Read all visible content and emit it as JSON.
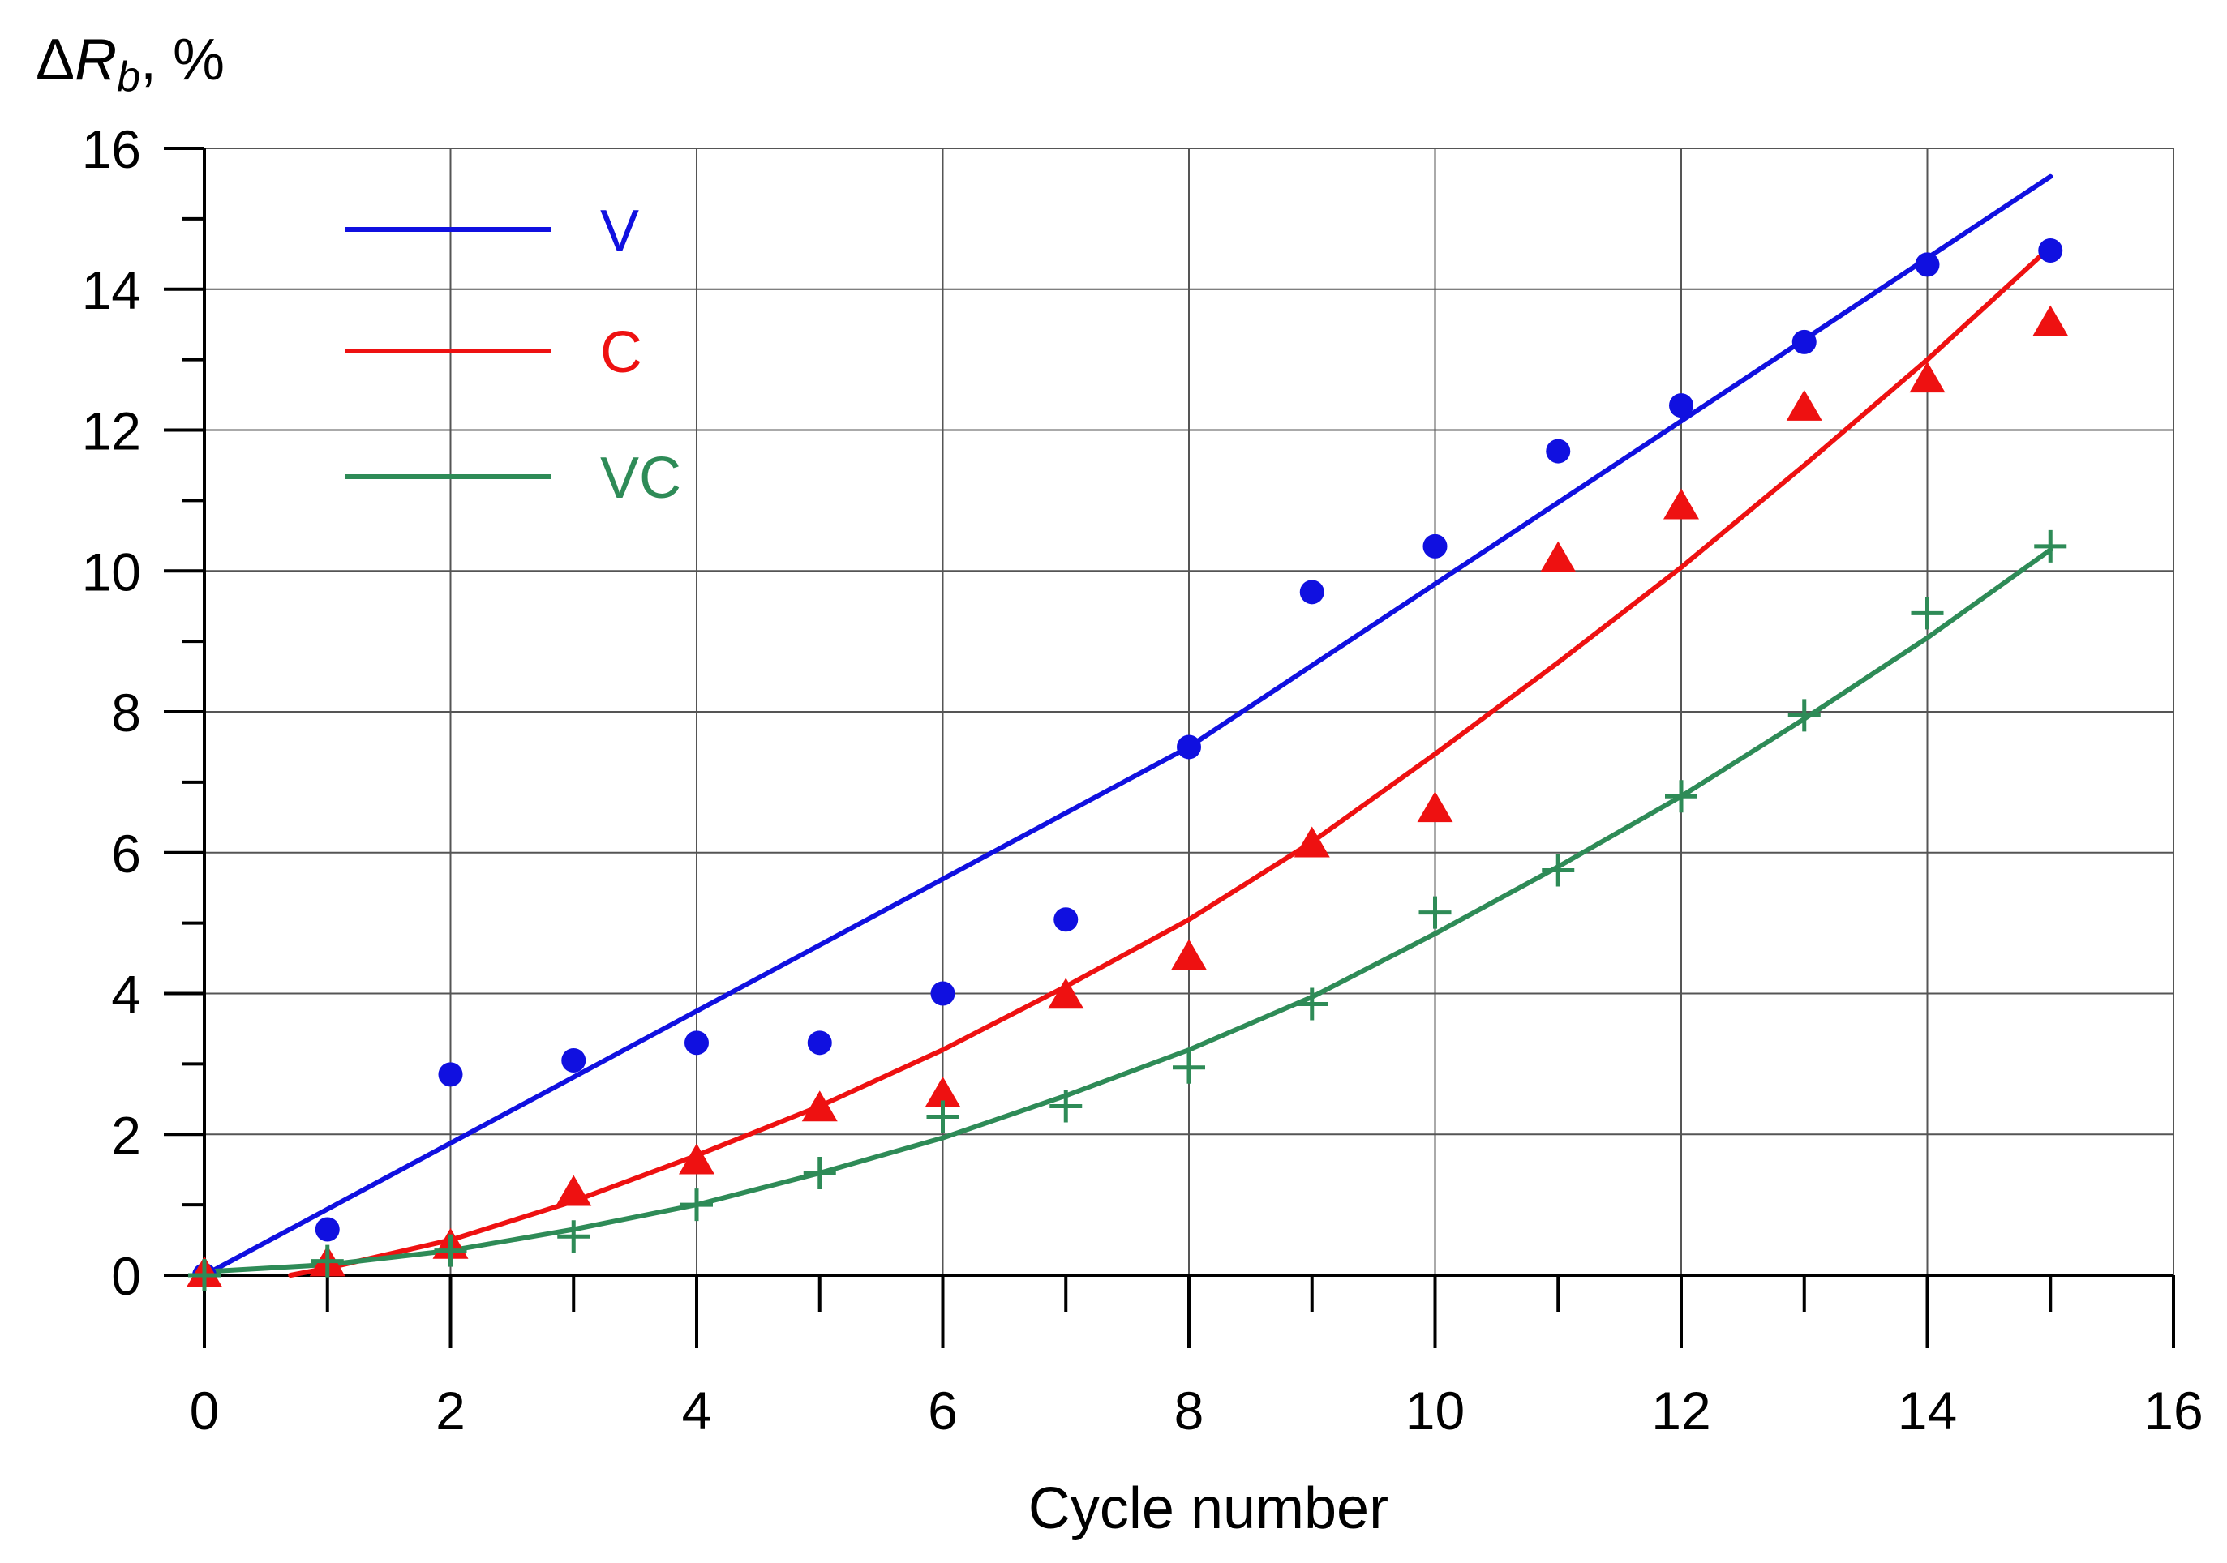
{
  "chart_data": {
    "type": "line",
    "title": "",
    "ylabel": "ΔRb, %",
    "ylabel_parts": {
      "delta": "Δ",
      "symbol": "R",
      "subscript": "b",
      "unit": ", %"
    },
    "xlabel": "Cycle number",
    "xlim": [
      0,
      16
    ],
    "ylim": [
      0,
      16
    ],
    "x_ticks": [
      0,
      2,
      4,
      6,
      8,
      10,
      12,
      14,
      16
    ],
    "y_ticks": [
      0,
      2,
      4,
      6,
      8,
      10,
      12,
      14,
      16
    ],
    "grid": true,
    "legend_position": "top-left",
    "series": [
      {
        "name": "V",
        "color": "#1010e0",
        "marker": "circle",
        "points_x": [
          0,
          1,
          2,
          3,
          4,
          5,
          6,
          7,
          8,
          9,
          10,
          11,
          12,
          13,
          14,
          15
        ],
        "points_y": [
          0,
          0.65,
          2.85,
          3.05,
          3.3,
          3.3,
          4.0,
          5.05,
          7.5,
          9.7,
          10.35,
          11.7,
          12.35,
          13.25,
          14.35,
          14.55
        ],
        "fit_x": [
          0,
          8,
          15
        ],
        "fit_y": [
          0,
          7.5,
          15.6
        ]
      },
      {
        "name": "C",
        "color": "#ee1111",
        "marker": "triangle",
        "points_x": [
          0,
          1,
          2,
          3,
          4,
          5,
          6,
          7,
          8,
          9,
          10,
          11,
          12,
          13,
          14,
          15
        ],
        "points_y": [
          0,
          0.15,
          0.4,
          1.15,
          1.6,
          2.35,
          2.55,
          3.95,
          4.5,
          6.1,
          6.6,
          10.15,
          10.9,
          12.3,
          12.7,
          13.5
        ],
        "fit_x": [
          0.7,
          1,
          2,
          3,
          4,
          5,
          6,
          7,
          8,
          9,
          10,
          11,
          12,
          13,
          14,
          15
        ],
        "fit_y": [
          0.0,
          0.1,
          0.5,
          1.05,
          1.7,
          2.4,
          3.2,
          4.1,
          5.05,
          6.15,
          7.4,
          8.7,
          10.05,
          11.5,
          13.0,
          14.6
        ]
      },
      {
        "name": "VC",
        "color": "#2e8b57",
        "marker": "plus",
        "points_x": [
          0,
          1,
          2,
          3,
          4,
          5,
          6,
          7,
          8,
          9,
          10,
          11,
          12,
          13,
          14,
          15
        ],
        "points_y": [
          0,
          0.2,
          0.35,
          0.55,
          1.0,
          1.45,
          2.25,
          2.4,
          2.95,
          3.85,
          5.15,
          5.75,
          6.8,
          7.95,
          9.4,
          10.35
        ],
        "fit_x": [
          0,
          1,
          2,
          3,
          4,
          5,
          6,
          7,
          8,
          9,
          10,
          11,
          12,
          13,
          14,
          15
        ],
        "fit_y": [
          0.05,
          0.15,
          0.35,
          0.65,
          1.0,
          1.45,
          1.95,
          2.55,
          3.2,
          3.95,
          4.85,
          5.8,
          6.8,
          7.9,
          9.05,
          10.3
        ]
      }
    ]
  }
}
